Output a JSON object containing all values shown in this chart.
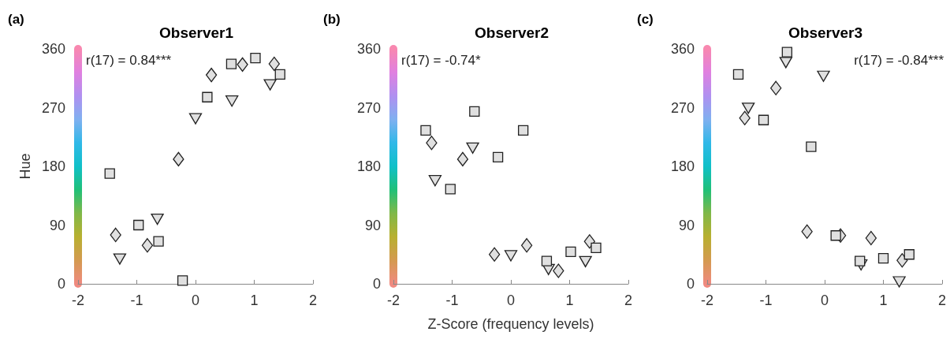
{
  "chart_data": [
    {
      "type": "scatter",
      "title": "Observer1",
      "ylabel": "Hue",
      "annotations": [
        "(a)",
        "r(17) = 0.84***"
      ],
      "xlim": [
        -2,
        2
      ],
      "xticks": [
        -2,
        -1,
        0,
        1,
        2
      ],
      "ylim": [
        0,
        360
      ],
      "yticks": [
        0,
        90,
        180,
        270,
        360
      ],
      "grid": false,
      "series": [
        {
          "marker": "square",
          "color": "#e0e0e0",
          "x": [
            -1.46,
            -0.97,
            -0.63,
            -0.22,
            0.2,
            0.61,
            1.02,
            1.44
          ],
          "values": [
            169,
            90,
            65,
            5,
            286,
            337,
            346,
            321
          ]
        },
        {
          "marker": "diamond",
          "color": "#e0e0e0",
          "x": [
            -1.36,
            -0.82,
            -0.29,
            0.27,
            0.8,
            1.34
          ],
          "values": [
            75,
            59,
            191,
            320,
            336,
            337
          ]
        },
        {
          "marker": "triangle",
          "color": "#e0e0e0",
          "x": [
            -1.29,
            -0.65,
            0,
            0.62,
            1.27
          ],
          "values": [
            38,
            99,
            253,
            280,
            305
          ]
        }
      ]
    },
    {
      "type": "scatter",
      "title": "Observer2",
      "xlabel": "Z-Score (frequency levels)",
      "annotations": [
        "(b)",
        "r(17) = -0.74*"
      ],
      "xlim": [
        -2,
        2
      ],
      "xticks": [
        -2,
        -1,
        0,
        1,
        2
      ],
      "ylim": [
        0,
        360
      ],
      "yticks": [
        0,
        90,
        180,
        270,
        360
      ],
      "grid": false,
      "series": [
        {
          "marker": "square",
          "color": "#e0e0e0",
          "x": [
            -1.45,
            -1.03,
            -0.62,
            -0.22,
            0.21,
            0.61,
            1.02,
            1.45
          ],
          "values": [
            235,
            145,
            264,
            194,
            235,
            35,
            49,
            55
          ]
        },
        {
          "marker": "diamond",
          "color": "#e0e0e0",
          "x": [
            -1.35,
            -0.82,
            -0.28,
            0.27,
            0.81,
            1.34
          ],
          "values": [
            216,
            191,
            45,
            59,
            20,
            65
          ]
        },
        {
          "marker": "triangle",
          "color": "#e0e0e0",
          "x": [
            -1.29,
            -0.65,
            0,
            0.64,
            1.27
          ],
          "values": [
            158,
            208,
            43,
            22,
            34
          ]
        }
      ]
    },
    {
      "type": "scatter",
      "title": "Observer3",
      "annotations": [
        "(c)",
        "r(17) = -0.84***"
      ],
      "xlim": [
        -2,
        2
      ],
      "xticks": [
        -2,
        -1,
        0,
        1,
        2
      ],
      "ylim": [
        0,
        360
      ],
      "yticks": [
        0,
        90,
        180,
        270,
        360
      ],
      "grid": false,
      "series": [
        {
          "marker": "square",
          "color": "#e0e0e0",
          "x": [
            -1.47,
            -1.04,
            -0.64,
            -0.23,
            0.19,
            0.6,
            1.0,
            1.44
          ],
          "values": [
            321,
            251,
            355,
            210,
            74,
            35,
            39,
            45
          ]
        },
        {
          "marker": "diamond",
          "color": "#e0e0e0",
          "x": [
            -1.36,
            -0.83,
            -0.3,
            0.27,
            0.79,
            1.32
          ],
          "values": [
            254,
            300,
            80,
            74,
            70,
            36
          ]
        },
        {
          "marker": "triangle",
          "color": "#e0e0e0",
          "x": [
            -1.3,
            -0.66,
            -0.02,
            0.62,
            1.27
          ],
          "values": [
            269,
            339,
            318,
            29,
            3
          ]
        }
      ]
    }
  ]
}
